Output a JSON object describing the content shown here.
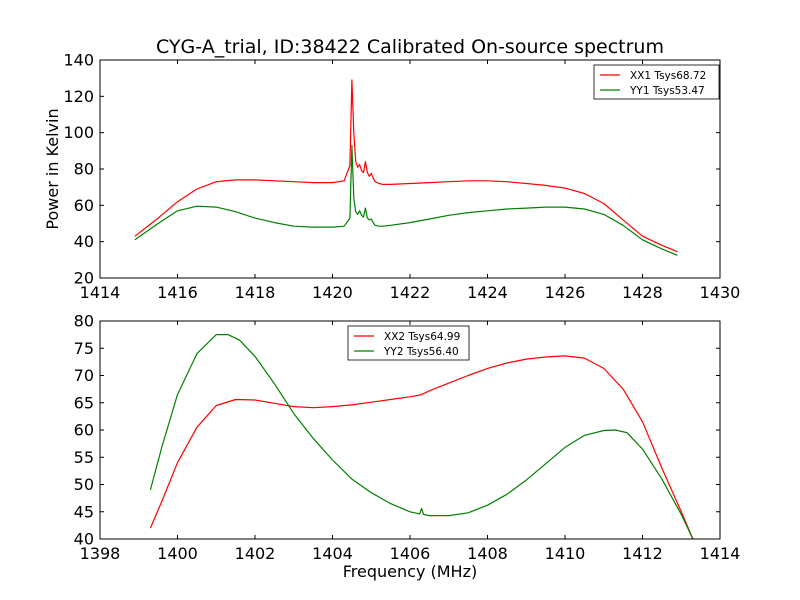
{
  "chart_data": [
    {
      "type": "line",
      "title": "CYG-A_trial, ID:38422 Calibrated On-source spectrum",
      "xlabel": "",
      "ylabel": "Power in Kelvin",
      "xlim": [
        1414,
        1430
      ],
      "ylim": [
        20,
        140
      ],
      "xticks": [
        "1414",
        "1416",
        "1418",
        "1420",
        "1422",
        "1424",
        "1426",
        "1428",
        "1430"
      ],
      "yticks": [
        "20",
        "40",
        "60",
        "80",
        "100",
        "120",
        "140"
      ],
      "legend_position": "top-right",
      "series": [
        {
          "name": "XX1 Tsys68.72",
          "color": "#ff0000",
          "x": [
            1414.9,
            1415.5,
            1416.0,
            1416.5,
            1417.0,
            1417.5,
            1418.0,
            1418.5,
            1419.0,
            1419.5,
            1420.0,
            1420.3,
            1420.45,
            1420.5,
            1420.55,
            1420.6,
            1420.65,
            1420.7,
            1420.75,
            1420.8,
            1420.85,
            1420.9,
            1420.95,
            1421.0,
            1421.05,
            1421.1,
            1421.2,
            1421.3,
            1421.5,
            1422.0,
            1422.5,
            1423.0,
            1423.5,
            1424.0,
            1424.5,
            1425.0,
            1425.5,
            1426.0,
            1426.5,
            1427.0,
            1427.5,
            1428.0,
            1428.5,
            1428.9
          ],
          "values": [
            43,
            53,
            62,
            69,
            73,
            74,
            74,
            73.5,
            73,
            72.5,
            72.5,
            73.5,
            82,
            129,
            100,
            84,
            81,
            82.5,
            79,
            78,
            84,
            78,
            76,
            77.5,
            75,
            73,
            72,
            71.5,
            71.5,
            72,
            72.5,
            73,
            73.5,
            73.5,
            73,
            72,
            71,
            69.5,
            66.5,
            61,
            52,
            43,
            38,
            34.5
          ]
        },
        {
          "name": "YY1 Tsys53.47",
          "color": "#008000",
          "x": [
            1414.9,
            1415.5,
            1416.0,
            1416.5,
            1417.0,
            1417.5,
            1418.0,
            1418.5,
            1419.0,
            1419.5,
            1420.0,
            1420.3,
            1420.45,
            1420.5,
            1420.55,
            1420.6,
            1420.65,
            1420.7,
            1420.75,
            1420.8,
            1420.85,
            1420.9,
            1420.95,
            1421.0,
            1421.05,
            1421.1,
            1421.2,
            1421.3,
            1421.5,
            1422.0,
            1422.5,
            1423.0,
            1423.5,
            1424.0,
            1424.5,
            1425.0,
            1425.5,
            1426.0,
            1426.5,
            1427.0,
            1427.5,
            1428.0,
            1428.5,
            1428.9
          ],
          "values": [
            41,
            50,
            57,
            59.5,
            59,
            56.5,
            53,
            50.5,
            48.5,
            48,
            48,
            48.5,
            53,
            93,
            64,
            56.5,
            55,
            57,
            54.5,
            53.5,
            58.5,
            53,
            52,
            52.5,
            50.5,
            49,
            48.5,
            48.5,
            49,
            50.5,
            52.5,
            54.5,
            56,
            57,
            58,
            58.5,
            59,
            59,
            58,
            55,
            49,
            41,
            36,
            32.5
          ]
        }
      ]
    },
    {
      "type": "line",
      "title": "",
      "xlabel": "Frequency (MHz)",
      "ylabel": "",
      "xlim": [
        1398,
        1414
      ],
      "ylim": [
        40,
        80
      ],
      "xticks": [
        "1398",
        "1400",
        "1402",
        "1404",
        "1406",
        "1408",
        "1410",
        "1412",
        "1414"
      ],
      "yticks": [
        "40",
        "45",
        "50",
        "55",
        "60",
        "65",
        "70",
        "75",
        "80"
      ],
      "legend_position": "upper-center",
      "series": [
        {
          "name": "XX2 Tsys64.99",
          "color": "#ff0000",
          "x": [
            1399.3,
            1399.6,
            1400.0,
            1400.5,
            1401.0,
            1401.5,
            1402.0,
            1402.5,
            1403.0,
            1403.5,
            1404.0,
            1404.5,
            1405.0,
            1405.5,
            1406.0,
            1406.3,
            1406.5,
            1407.0,
            1407.5,
            1408.0,
            1408.5,
            1409.0,
            1409.5,
            1410.0,
            1410.5,
            1411.0,
            1411.5,
            1412.0,
            1412.5,
            1413.0,
            1413.3
          ],
          "values": [
            42,
            47,
            54,
            60.5,
            64.5,
            65.6,
            65.5,
            64.9,
            64.3,
            64.1,
            64.3,
            64.6,
            65.1,
            65.6,
            66.1,
            66.5,
            67.2,
            68.6,
            70,
            71.3,
            72.3,
            73,
            73.4,
            73.6,
            73.2,
            71.3,
            67.5,
            61.5,
            53,
            45,
            40
          ]
        },
        {
          "name": "YY2 Tsys56.40",
          "color": "#008000",
          "x": [
            1399.3,
            1399.6,
            1400.0,
            1400.5,
            1401.0,
            1401.3,
            1401.6,
            1402.0,
            1402.5,
            1403.0,
            1403.5,
            1404.0,
            1404.5,
            1405.0,
            1405.5,
            1406.0,
            1406.25,
            1406.3,
            1406.35,
            1406.5,
            1407.0,
            1407.5,
            1408.0,
            1408.5,
            1409.0,
            1409.5,
            1410.0,
            1410.5,
            1411.0,
            1411.3,
            1411.6,
            1412.0,
            1412.5,
            1413.0,
            1413.3
          ],
          "values": [
            49,
            57,
            66.5,
            74,
            77.5,
            77.5,
            76.5,
            73.5,
            68.5,
            63,
            58.5,
            54.5,
            51,
            48.5,
            46.5,
            45,
            44.6,
            45.6,
            44.5,
            44.3,
            44.3,
            44.8,
            46.2,
            48.2,
            50.8,
            53.8,
            56.8,
            59,
            59.9,
            60,
            59.5,
            56.5,
            51,
            44.5,
            40
          ]
        }
      ]
    }
  ]
}
